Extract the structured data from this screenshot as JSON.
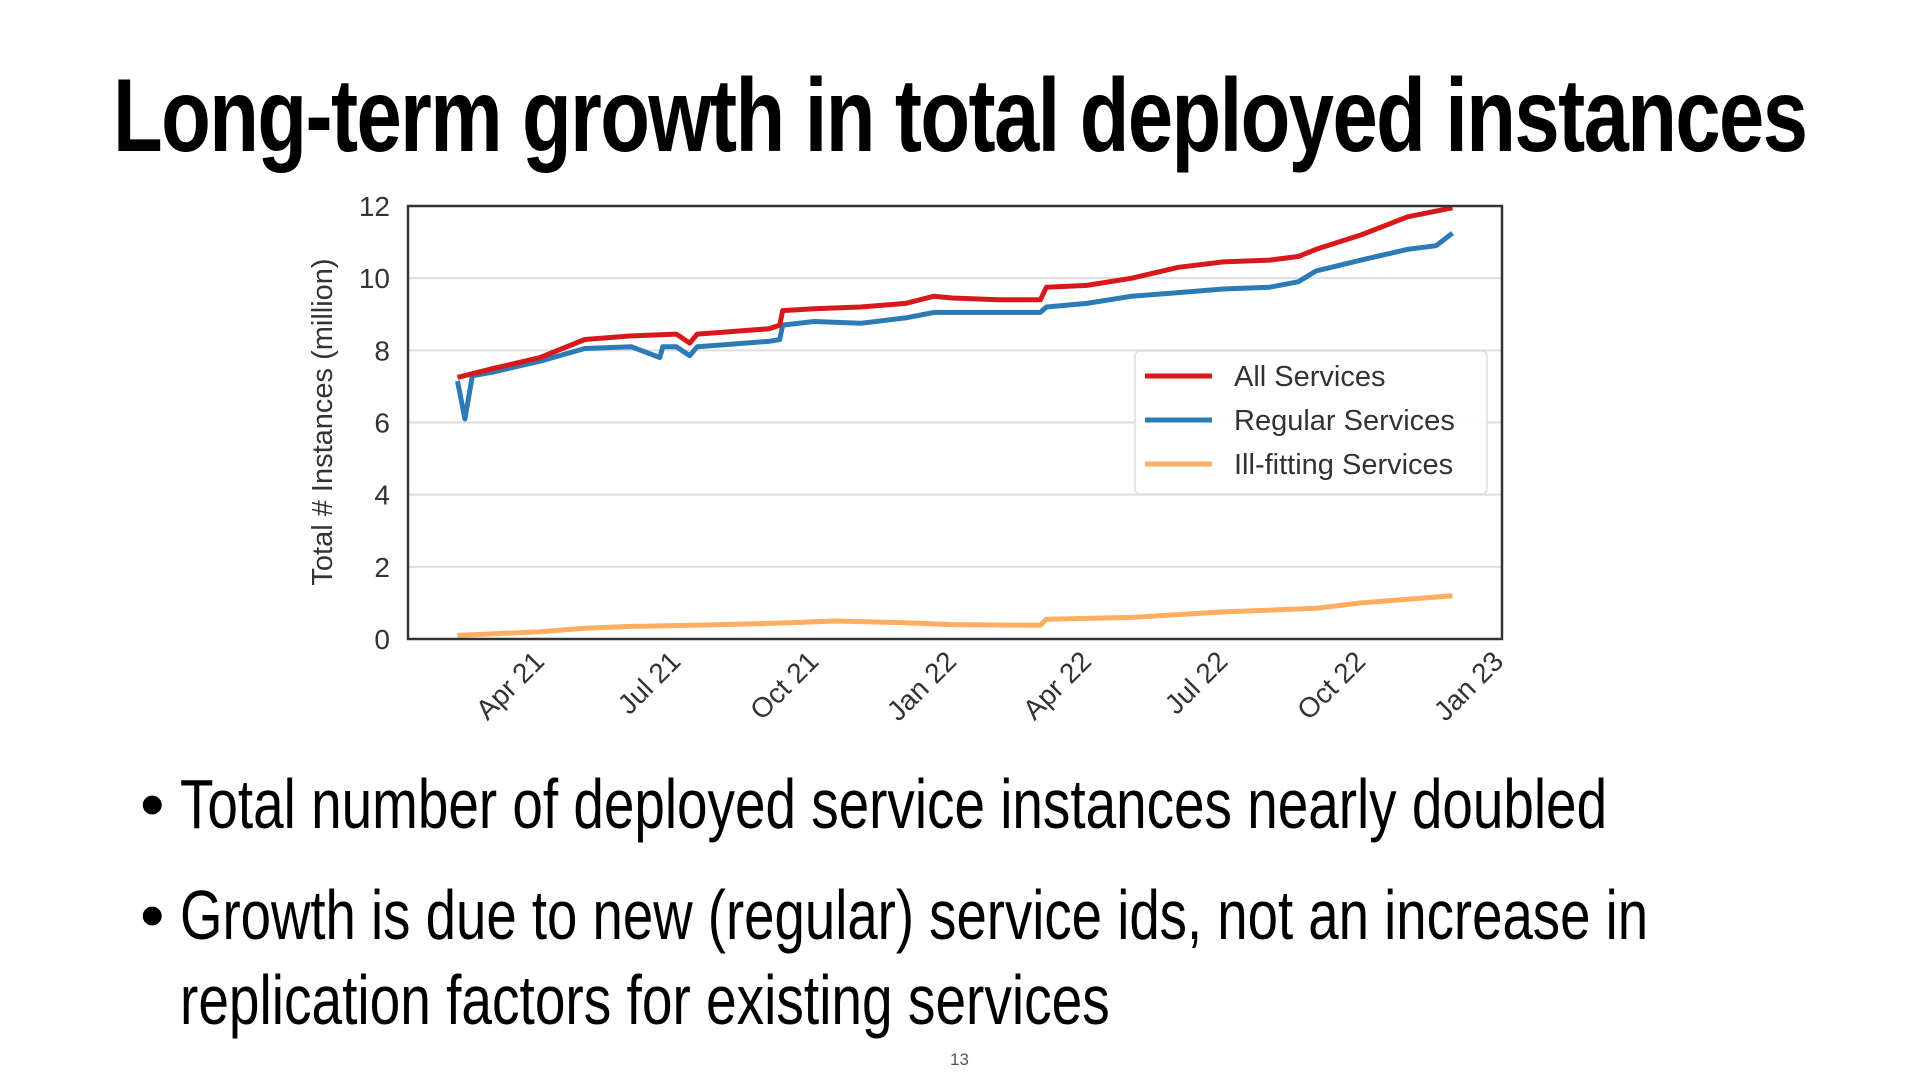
{
  "slide": {
    "title": "Long-term growth in total deployed instances",
    "bullets": [
      "Total number of deployed service instances nearly doubled",
      "Growth is due to new (regular) service ids, not an increase in",
      "replication factors for existing services"
    ],
    "bullet_symbol": "•",
    "page_number": "13"
  },
  "chart_data": {
    "type": "line",
    "title": "",
    "xlabel": "",
    "ylabel": "Total # Instances (million)",
    "ylim": [
      0,
      12
    ],
    "yticks": [
      "0",
      "2",
      "4",
      "6",
      "8",
      "10",
      "12"
    ],
    "xlim": [
      "2021-01-03",
      "2023-01-03"
    ],
    "xticks": [
      {
        "date": "2021-04-01",
        "label": "Apr 21"
      },
      {
        "date": "2021-07-01",
        "label": "Jul 21"
      },
      {
        "date": "2021-10-01",
        "label": "Oct 21"
      },
      {
        "date": "2022-01-01",
        "label": "Jan 22"
      },
      {
        "date": "2022-04-01",
        "label": "Apr 22"
      },
      {
        "date": "2022-07-01",
        "label": "Jul 22"
      },
      {
        "date": "2022-10-01",
        "label": "Oct 22"
      },
      {
        "date": "2023-01-01",
        "label": "Jan 23"
      }
    ],
    "grid": true,
    "legend_position": "center-right",
    "series": [
      {
        "name": "All Services",
        "color": "#d7191c",
        "points": [
          [
            "2021-02-05",
            7.25
          ],
          [
            "2021-03-01",
            7.5
          ],
          [
            "2021-04-01",
            7.8
          ],
          [
            "2021-05-01",
            8.3
          ],
          [
            "2021-06-01",
            8.4
          ],
          [
            "2021-07-01",
            8.45
          ],
          [
            "2021-07-10",
            8.2
          ],
          [
            "2021-07-15",
            8.45
          ],
          [
            "2021-08-01",
            8.5
          ],
          [
            "2021-09-01",
            8.6
          ],
          [
            "2021-09-08",
            8.7
          ],
          [
            "2021-09-10",
            9.1
          ],
          [
            "2021-10-01",
            9.15
          ],
          [
            "2021-11-01",
            9.2
          ],
          [
            "2021-12-01",
            9.3
          ],
          [
            "2021-12-20",
            9.5
          ],
          [
            "2022-01-01",
            9.45
          ],
          [
            "2022-02-01",
            9.4
          ],
          [
            "2022-03-01",
            9.4
          ],
          [
            "2022-03-05",
            9.75
          ],
          [
            "2022-04-01",
            9.8
          ],
          [
            "2022-05-01",
            10.0
          ],
          [
            "2022-06-01",
            10.3
          ],
          [
            "2022-07-01",
            10.45
          ],
          [
            "2022-08-01",
            10.5
          ],
          [
            "2022-08-20",
            10.6
          ],
          [
            "2022-09-01",
            10.8
          ],
          [
            "2022-10-01",
            11.2
          ],
          [
            "2022-11-01",
            11.7
          ],
          [
            "2022-12-01",
            11.95
          ]
        ]
      },
      {
        "name": "Regular Services",
        "color": "#2c7bb6",
        "points": [
          [
            "2021-02-05",
            7.15
          ],
          [
            "2021-02-10",
            6.1
          ],
          [
            "2021-02-15",
            7.3
          ],
          [
            "2021-03-01",
            7.4
          ],
          [
            "2021-04-01",
            7.7
          ],
          [
            "2021-05-01",
            8.05
          ],
          [
            "2021-06-01",
            8.1
          ],
          [
            "2021-06-20",
            7.8
          ],
          [
            "2021-06-22",
            8.1
          ],
          [
            "2021-07-01",
            8.1
          ],
          [
            "2021-07-10",
            7.85
          ],
          [
            "2021-07-15",
            8.1
          ],
          [
            "2021-08-01",
            8.15
          ],
          [
            "2021-09-01",
            8.25
          ],
          [
            "2021-09-08",
            8.3
          ],
          [
            "2021-09-10",
            8.7
          ],
          [
            "2021-10-01",
            8.8
          ],
          [
            "2021-11-01",
            8.75
          ],
          [
            "2021-12-01",
            8.9
          ],
          [
            "2021-12-20",
            9.05
          ],
          [
            "2022-01-01",
            9.05
          ],
          [
            "2022-03-01",
            9.05
          ],
          [
            "2022-03-05",
            9.2
          ],
          [
            "2022-04-01",
            9.3
          ],
          [
            "2022-05-01",
            9.5
          ],
          [
            "2022-06-01",
            9.6
          ],
          [
            "2022-07-01",
            9.7
          ],
          [
            "2022-08-01",
            9.75
          ],
          [
            "2022-08-20",
            9.9
          ],
          [
            "2022-09-01",
            10.2
          ],
          [
            "2022-10-01",
            10.5
          ],
          [
            "2022-11-01",
            10.8
          ],
          [
            "2022-11-20",
            10.9
          ],
          [
            "2022-12-01",
            11.25
          ]
        ]
      },
      {
        "name": "Ill-fitting Services",
        "color": "#fdae61",
        "points": [
          [
            "2021-02-05",
            0.1
          ],
          [
            "2021-04-01",
            0.2
          ],
          [
            "2021-05-01",
            0.3
          ],
          [
            "2021-06-01",
            0.35
          ],
          [
            "2021-08-01",
            0.4
          ],
          [
            "2021-09-15",
            0.45
          ],
          [
            "2021-10-15",
            0.5
          ],
          [
            "2021-12-01",
            0.45
          ],
          [
            "2022-01-01",
            0.4
          ],
          [
            "2022-03-01",
            0.38
          ],
          [
            "2022-03-05",
            0.55
          ],
          [
            "2022-05-01",
            0.6
          ],
          [
            "2022-07-01",
            0.75
          ],
          [
            "2022-08-01",
            0.8
          ],
          [
            "2022-09-01",
            0.85
          ],
          [
            "2022-10-01",
            1.0
          ],
          [
            "2022-11-01",
            1.1
          ],
          [
            "2022-12-01",
            1.2
          ]
        ]
      }
    ]
  }
}
